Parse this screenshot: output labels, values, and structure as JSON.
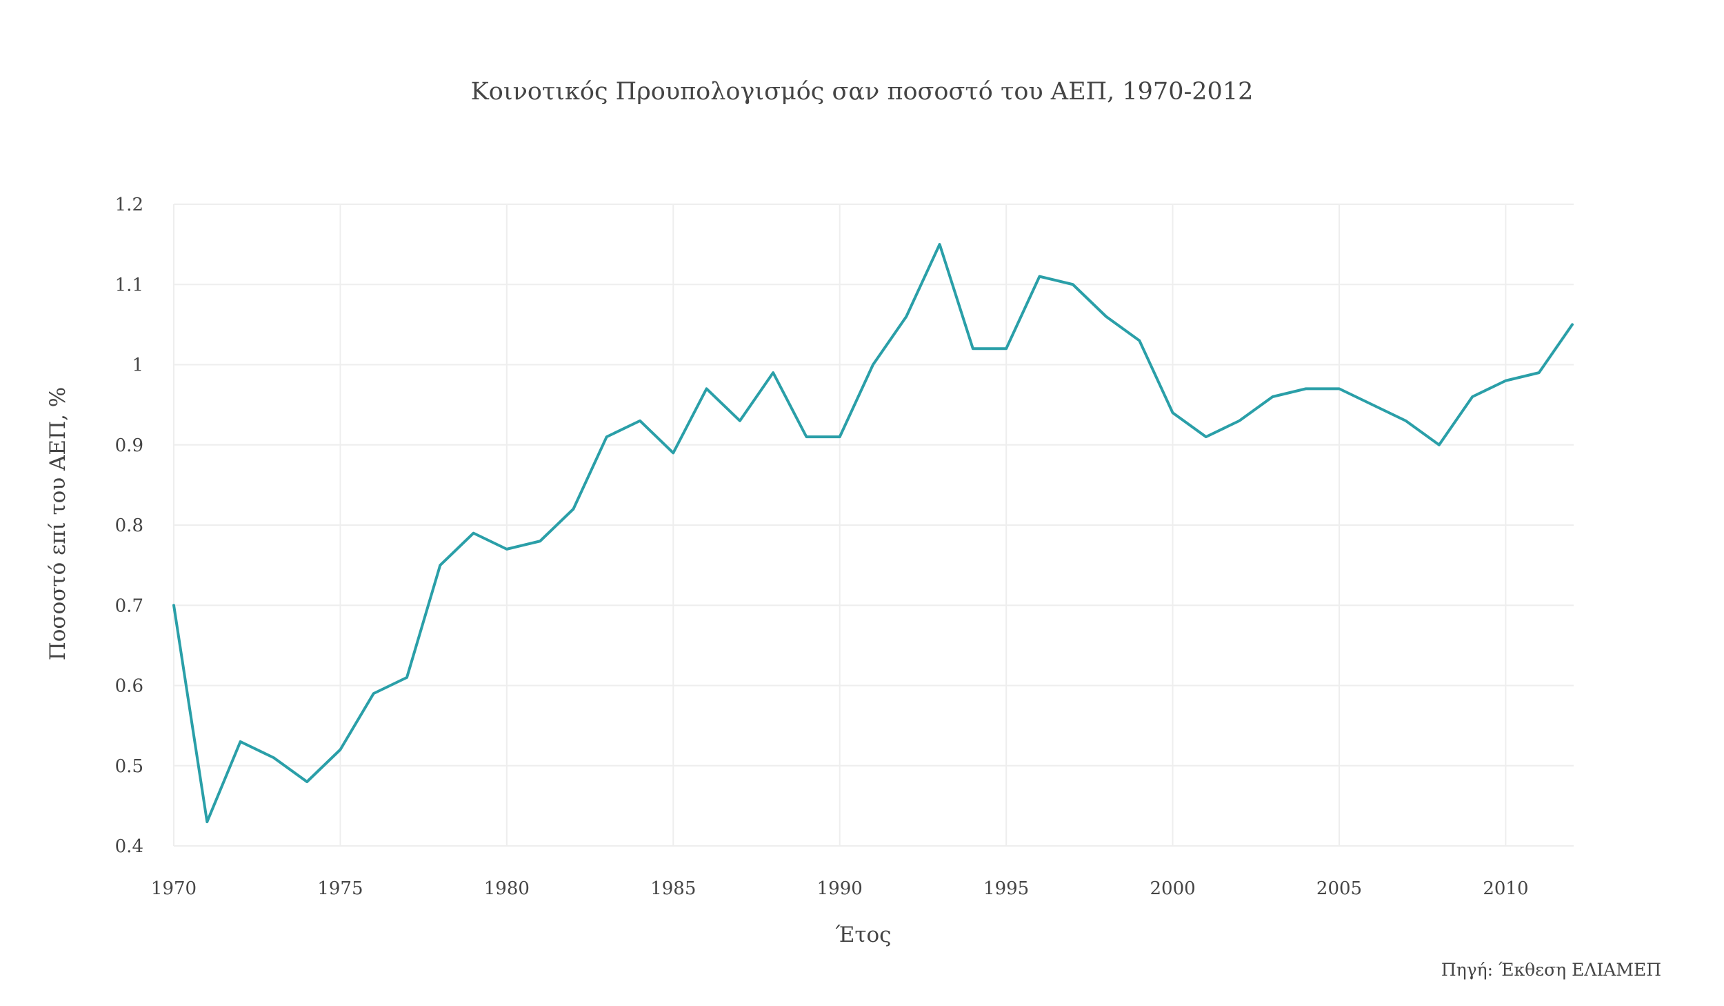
{
  "chart_data": {
    "type": "line",
    "title": "Κοινοτικός Προυπολογισμός σαν ποσοστό του ΑΕΠ, 1970-2012",
    "xlabel": "Έτος",
    "ylabel": "Ποσοστό επί του ΑΕΠ, %",
    "source": "Πηγή: Έκθεση ΕΛΙΑΜΕΠ",
    "xlim": [
      1970,
      2012
    ],
    "ylim": [
      0.4,
      1.2
    ],
    "grid": true,
    "x_ticks": [
      1970,
      1975,
      1980,
      1985,
      1990,
      1995,
      2000,
      2005,
      2010
    ],
    "x_tick_labels": [
      "1970",
      "1975",
      "1980",
      "1985",
      "1990",
      "1995",
      "2000",
      "2005",
      "2010"
    ],
    "y_ticks": [
      0.4,
      0.5,
      0.6,
      0.7,
      0.8,
      0.9,
      1.0,
      1.1,
      1.2
    ],
    "y_tick_labels": [
      "0.4",
      "0.5",
      "0.6",
      "0.7",
      "0.8",
      "0.9",
      "1",
      "1.1",
      "1.2"
    ],
    "colors": {
      "line": "#2a9fa8",
      "grid": "#eeeeee",
      "text": "#444444"
    },
    "x": [
      1970,
      1971,
      1972,
      1973,
      1974,
      1975,
      1976,
      1977,
      1978,
      1979,
      1980,
      1981,
      1982,
      1983,
      1984,
      1985,
      1986,
      1987,
      1988,
      1989,
      1990,
      1991,
      1992,
      1993,
      1994,
      1995,
      1996,
      1997,
      1998,
      1999,
      2000,
      2001,
      2002,
      2003,
      2004,
      2005,
      2006,
      2007,
      2008,
      2009,
      2010,
      2011,
      2012
    ],
    "series": [
      {
        "values": [
          0.7,
          0.43,
          0.53,
          0.51,
          0.48,
          0.52,
          0.59,
          0.61,
          0.75,
          0.79,
          0.77,
          0.78,
          0.82,
          0.91,
          0.93,
          0.89,
          0.97,
          0.93,
          0.99,
          0.91,
          0.91,
          1.0,
          1.06,
          1.15,
          1.02,
          1.02,
          1.11,
          1.1,
          1.06,
          1.03,
          0.94,
          0.91,
          0.93,
          0.96,
          0.97,
          0.97,
          0.95,
          0.93,
          0.9,
          0.96,
          0.98,
          0.99,
          1.05
        ]
      }
    ]
  }
}
